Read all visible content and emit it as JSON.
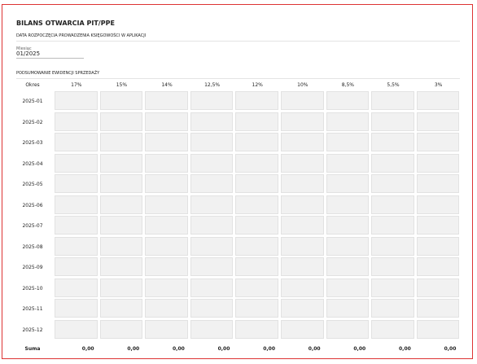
{
  "header": {
    "title": "BILANS OTWARCIA PIT/PPE"
  },
  "start_section": {
    "title": "DATA ROZPOCZĘCIA PROWADZENIA KSIĘGOWOŚCI W APLIKACJI",
    "field_label": "Miesiąc",
    "field_value": "01/2025"
  },
  "sales_section": {
    "title": "PODSUMOWANIE EWIDENCJI SPRZEDAŻY"
  },
  "table": {
    "columns": [
      "Okres",
      "17%",
      "15%",
      "14%",
      "12,5%",
      "12%",
      "10%",
      "8,5%",
      "5,5%",
      "3%"
    ],
    "rows": [
      "2025-01",
      "2025-02",
      "2025-03",
      "2025-04",
      "2025-05",
      "2025-06",
      "2025-07",
      "2025-08",
      "2025-09",
      "2025-10",
      "2025-11",
      "2025-12"
    ],
    "footer": [
      "Suma",
      "0,00",
      "0,00",
      "0,00",
      "0,00",
      "0,00",
      "0,00",
      "0,00",
      "0,00",
      "0,00"
    ]
  }
}
